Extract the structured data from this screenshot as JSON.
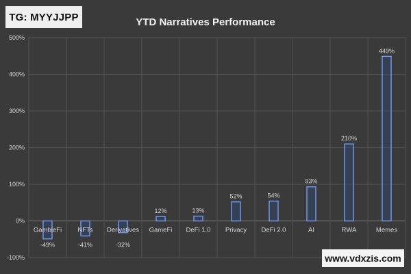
{
  "badge": {
    "text": "TG: MYYJJPP"
  },
  "watermark": {
    "text": "www.vdxzis.com"
  },
  "chart_data": {
    "type": "bar",
    "title": "YTD Narratives Performance",
    "xlabel": "",
    "ylabel": "",
    "ylim": [
      -100,
      500
    ],
    "yticks": [
      500,
      400,
      300,
      200,
      100,
      0,
      -100
    ],
    "ytick_labels": [
      "500%",
      "400%",
      "300%",
      "200%",
      "100%",
      "0%",
      "-100%"
    ],
    "categories": [
      "GambleFi",
      "NFTs",
      "Derivatives",
      "GameFi",
      "DeFi 1.0",
      "Privacy",
      "DeFi 2.0",
      "AI",
      "RWA",
      "Memes"
    ],
    "values": [
      -49,
      -41,
      -32,
      12,
      13,
      52,
      54,
      93,
      210,
      449
    ],
    "data_labels": [
      "-49%",
      "-41%",
      "-32%",
      "12%",
      "13%",
      "52%",
      "54%",
      "93%",
      "210%",
      "449%"
    ],
    "grid": true,
    "colors": {
      "bar_fill": "#2f4d8a",
      "bar_stroke": "#6f96e8",
      "grid": "#525252",
      "axis": "#7a7a7a"
    }
  }
}
